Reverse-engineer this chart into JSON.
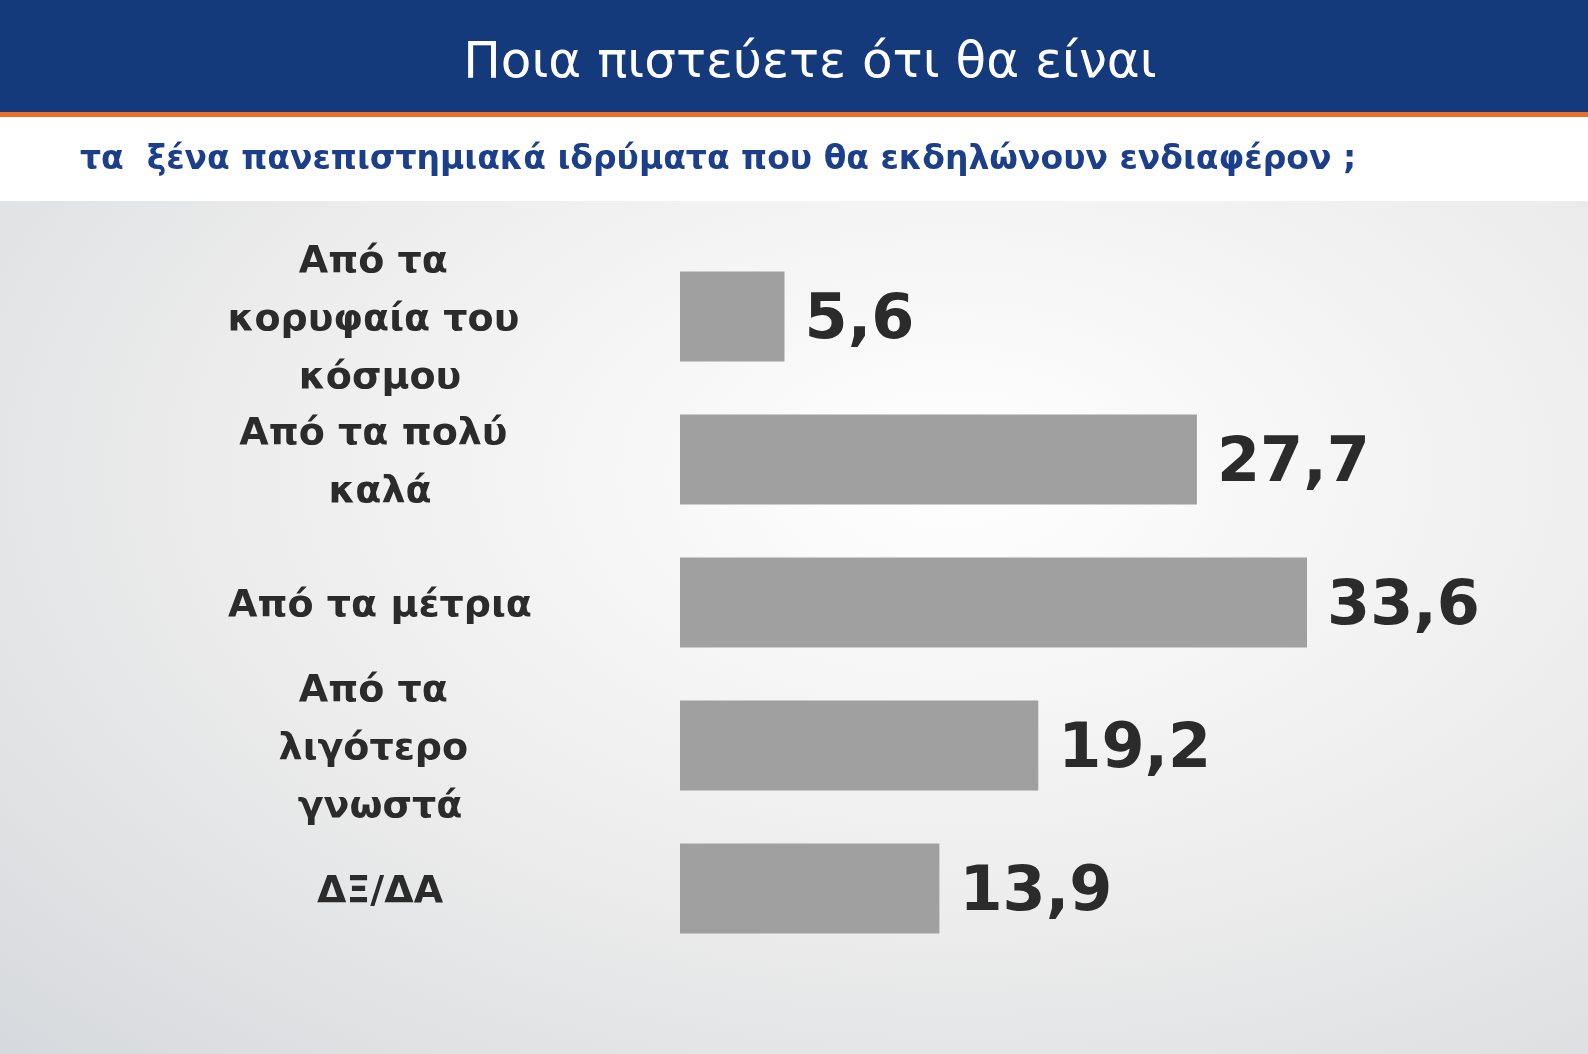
{
  "chart_data": {
    "type": "bar",
    "orientation": "horizontal",
    "title": "Ποια πιστεύετε ότι θα είναι",
    "subtitle": "τα  ξένα πανεπιστημιακά ιδρύματα που θα εκδηλώνουν ενδιαφέρον ;",
    "categories": [
      "Από τα κορυφαία του κόσμου",
      "Από τα πολύ καλά",
      "Από τα μέτρια",
      "Από τα λιγότερο γνωστά",
      "ΔΞ/ΔΑ"
    ],
    "values": [
      5.6,
      27.7,
      33.6,
      19.2,
      13.9
    ],
    "value_labels": [
      "5,6",
      "27,7",
      "33,6",
      "19,2",
      "13,9"
    ],
    "color": "#a0a0a0"
  }
}
